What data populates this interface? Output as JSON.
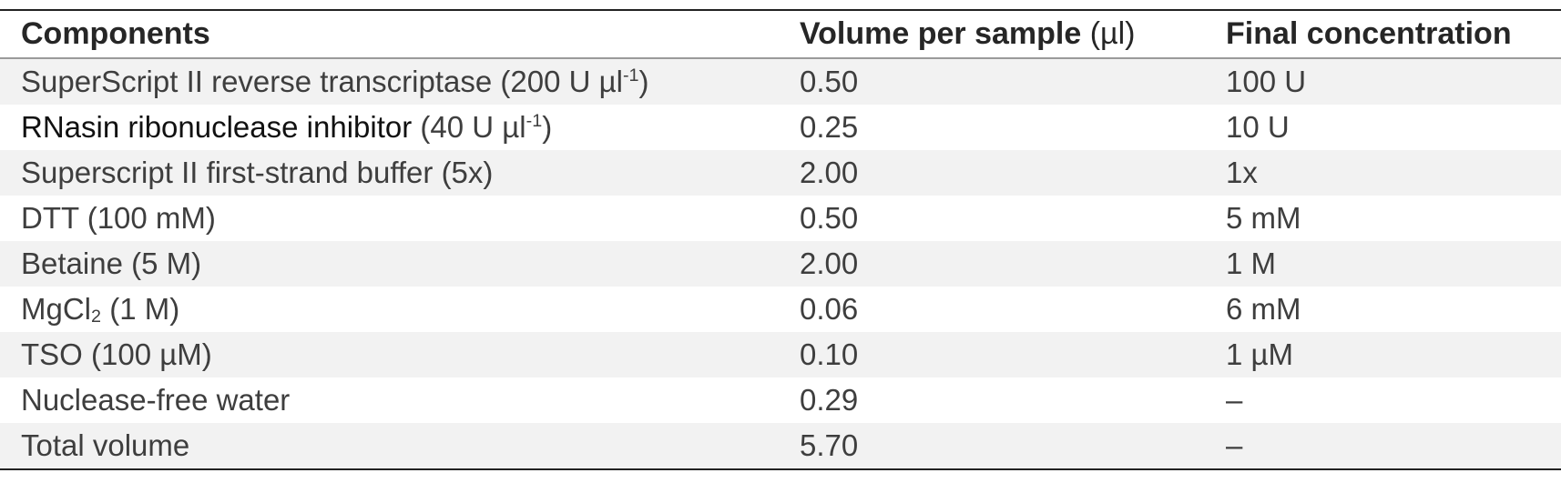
{
  "header": {
    "components": "Components",
    "volume_label": "Volume per sample",
    "volume_unit": "(µl)",
    "final_concentration": "Final concentration"
  },
  "rows": [
    {
      "component": "SuperScript II reverse transcriptase (200 U µl",
      "component_sup": "-1",
      "component_after": ")",
      "volume": "0.50",
      "final": "100 U"
    },
    {
      "component": "RNasin ribonuclease inhibitor",
      "component_rest": " (40 U µl",
      "component_sup": "-1",
      "component_after": ")",
      "volume": "0.25",
      "final": "10 U"
    },
    {
      "component": "Superscript II first-strand buffer (5x)",
      "volume": "2.00",
      "final": "1x"
    },
    {
      "component": "DTT (100 mM)",
      "volume": "0.50",
      "final": "5 mM"
    },
    {
      "component": "Betaine (5 M)",
      "volume": "2.00",
      "final": "1 M"
    },
    {
      "component": "MgCl",
      "component_sub": "2",
      "component_after": " (1 M)",
      "volume": "0.06",
      "final": "6 mM"
    },
    {
      "component": "TSO (100 µM)",
      "volume": "0.10",
      "final": "1 µM"
    },
    {
      "component": "Nuclease-free water",
      "volume": "0.29",
      "final": "–"
    },
    {
      "component": "Total volume",
      "volume": "5.70",
      "final": "–"
    }
  ]
}
